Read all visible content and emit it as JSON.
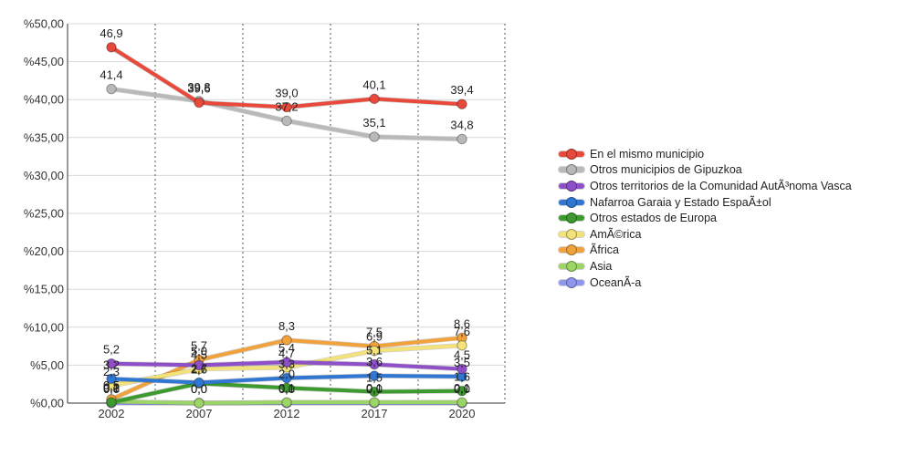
{
  "chart_data": {
    "type": "line",
    "title": "",
    "xlabel": "",
    "ylabel": "",
    "categories": [
      "2002",
      "2007",
      "2012",
      "2017",
      "2020"
    ],
    "ylim": [
      0,
      50
    ],
    "yticks": [
      0,
      5,
      10,
      15,
      20,
      25,
      30,
      35,
      40,
      45,
      50
    ],
    "ytick_labels": [
      "%0,00",
      "%5,00",
      "%10,00",
      "%15,00",
      "%20,00",
      "%25,00",
      "%30,00",
      "%35,00",
      "%40,00",
      "%45,00",
      "%50,00"
    ],
    "grid": "horizontal solid, vertical dotted",
    "legend_position": "right",
    "series": [
      {
        "name": "En el mismo municipio",
        "color": "#e8493a",
        "values": [
          46.9,
          39.6,
          39.0,
          40.1,
          39.4
        ],
        "labels": [
          "46,9",
          "39,6",
          "39,0",
          "40,1",
          "39,4"
        ]
      },
      {
        "name": "Otros municipios de Gipuzkoa",
        "color": "#b9b9b9",
        "values": [
          41.4,
          39.8,
          37.2,
          35.1,
          34.8
        ],
        "labels": [
          "41,4",
          "39,8",
          "37,2",
          "35,1",
          "34,8"
        ]
      },
      {
        "name": "Otros territorios de la Comunidad AutÃ³noma Vasca",
        "color": "#8e4fc9",
        "values": [
          5.2,
          5.0,
          5.4,
          5.1,
          4.5
        ],
        "labels": [
          "5,2",
          "5,0",
          "5,4",
          "5,1",
          "4,5"
        ]
      },
      {
        "name": "Nafarroa Garaia y Estado EspaÃ±ol",
        "color": "#2f77d3",
        "values": [
          3.2,
          2.7,
          3.3,
          3.6,
          3.5
        ],
        "labels": [
          "3,2",
          "2,7",
          "3,3",
          "3,6",
          "3,5"
        ]
      },
      {
        "name": "Otros estados de Europa",
        "color": "#3d9a2e",
        "values": [
          0.1,
          2.6,
          2.0,
          1.5,
          1.6
        ],
        "labels": [
          "0,1",
          "2,6",
          "2,0",
          "1,5",
          "1,6"
        ]
      },
      {
        "name": "AmÃ©rica",
        "color": "#f3e27a",
        "values": [
          2.3,
          4.5,
          4.7,
          6.9,
          7.6
        ],
        "labels": [
          "2,3",
          "4,5",
          "4,7",
          "6,9",
          "7,6"
        ]
      },
      {
        "name": "Ãfrica",
        "color": "#f2a23c",
        "values": [
          0.5,
          5.7,
          8.3,
          7.5,
          8.6
        ],
        "labels": [
          "0,5",
          "5,7",
          "8,3",
          "7,5",
          "8,6"
        ]
      },
      {
        "name": "Asia",
        "color": "#9dd466",
        "values": [
          0.2,
          0.0,
          0.1,
          0.1,
          0.1
        ],
        "labels": [
          "0,2",
          "0,0",
          "0,1",
          "0,1",
          "0,1"
        ]
      },
      {
        "name": "OceanÃ-a",
        "color": "#8f96ee",
        "values": [
          0.0,
          0.0,
          0.0,
          0.0,
          0.0
        ],
        "labels": [
          "0,0",
          "0,0",
          "0,0",
          "0,0",
          "0,0"
        ]
      }
    ]
  }
}
